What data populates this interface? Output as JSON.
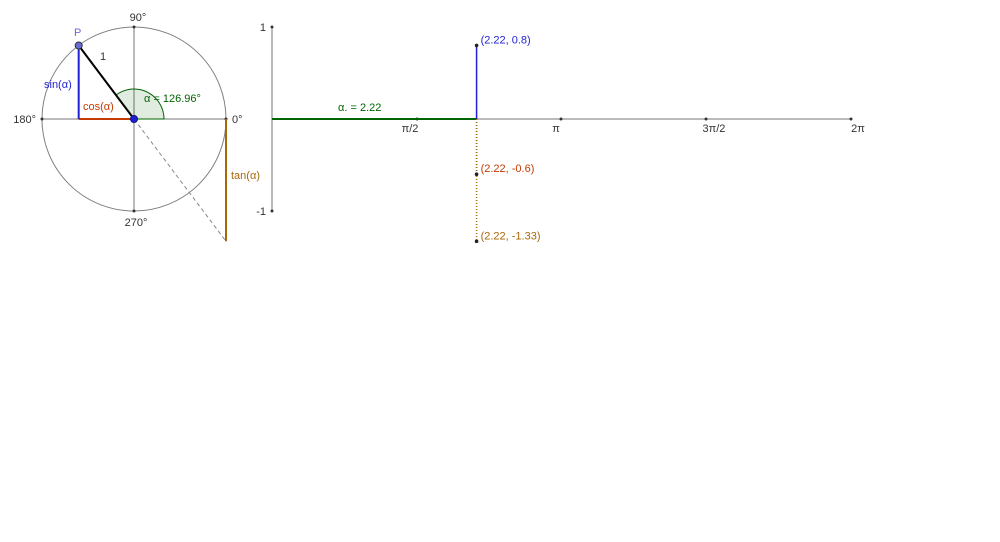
{
  "unit_circle": {
    "degree_labels": {
      "top": "90°",
      "left": "180°",
      "right": "0°",
      "bottom": "270°"
    },
    "point_label": "P",
    "radius_label": "1",
    "sin_label": "sin(α)",
    "cos_label": "cos(α)",
    "tan_label": "tan(α)",
    "angle_label": "α = 126.96°",
    "angle_degrees": 126.96
  },
  "graph": {
    "alpha_label": "α. = 2.22",
    "alpha_value": 2.22,
    "y_ticks": [
      "1",
      "-1"
    ],
    "x_ticks": [
      "π/2",
      "π",
      "3π/2",
      "2π"
    ],
    "points": [
      {
        "label": "(2.22, 0.8)",
        "y": 0.8
      },
      {
        "label": "(2.22, -0.6)",
        "y": -0.6
      },
      {
        "label": "(2.22, -1.33)",
        "y": -1.33
      }
    ]
  },
  "colors": {
    "sin": "#1f1fd6",
    "cos": "#c43a00",
    "tan": "#a8680a",
    "alpha": "#006400",
    "point": "#6b6bd6",
    "axis": "#777777"
  }
}
